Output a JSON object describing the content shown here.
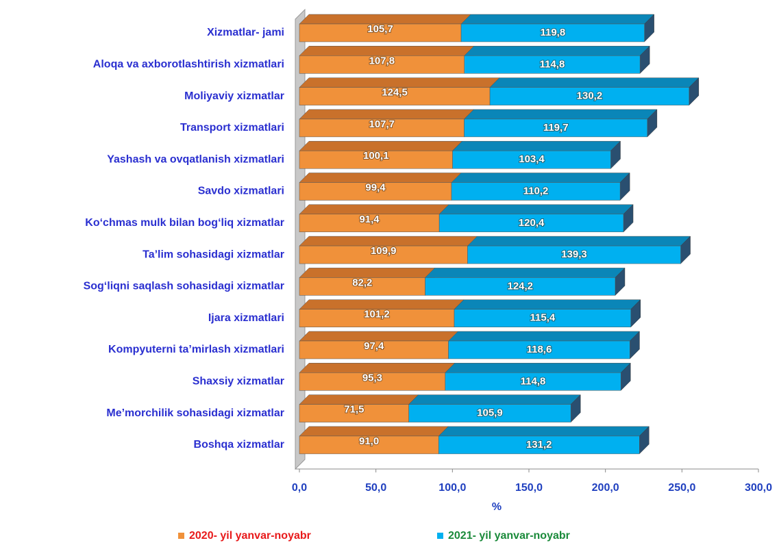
{
  "chart_data": {
    "type": "stacked_barh",
    "xlabel": "%",
    "categories": [
      "Xizmatlar- jami",
      "Aloqa va axborotlashtirish  xizmatlari",
      "Moliyaviy xizmatlar",
      "Transport xizmatlari",
      "Yashash  va ovqatlanish  xizmatlari",
      "Savdo xizmatlari",
      "Ko‘chmas mulk bilan bog‘liq xizmatlar",
      "Ta’lim sohasidagi xizmatlar",
      "Sog‘liqni saqlash sohasidagi  xizmatlar",
      "Ijara xizmatlari",
      "Kompyuterni ta’mirlash xizmatlari",
      "Shaxsiy xizmatlar",
      "Me’morchilik sohasidagi  xizmatlar",
      "Boshqa xizmatlar"
    ],
    "series": [
      {
        "name": "2020- yil yanvar-noyabr",
        "color": "#f0913a",
        "top_color": "#c9712b",
        "values": [
          105.7,
          107.8,
          124.5,
          107.7,
          100.1,
          99.4,
          91.4,
          109.9,
          82.2,
          101.2,
          97.4,
          95.3,
          71.5,
          91.0
        ],
        "value_labels": [
          "105,7",
          "107,8",
          "124,5",
          "107,7",
          "100,1",
          "99,4",
          "91,4",
          "109,9",
          "82,2",
          "101,2",
          "97,4",
          "95,3",
          "71,5",
          "91,0"
        ]
      },
      {
        "name": "2021- yil yanvar-noyabr",
        "color": "#00b0f0",
        "top_color": "#0a86b8",
        "values": [
          119.8,
          114.8,
          130.2,
          119.7,
          103.4,
          110.2,
          120.4,
          139.3,
          124.2,
          115.4,
          118.6,
          114.8,
          105.9,
          131.2
        ],
        "value_labels": [
          "119,8",
          "114,8",
          "130,2",
          "119,7",
          "103,4",
          "110,2",
          "120,4",
          "139,3",
          "124,2",
          "115,4",
          "118,6",
          "114,8",
          "105,9",
          "131,2"
        ]
      }
    ],
    "xlim": [
      0,
      300
    ],
    "xticks": [
      {
        "value": 0,
        "label": "0,0"
      },
      {
        "value": 50,
        "label": "50,0"
      },
      {
        "value": 100,
        "label": "100,0"
      },
      {
        "value": 150,
        "label": "150,0"
      },
      {
        "value": 200,
        "label": "200,0"
      },
      {
        "value": 250,
        "label": "250,0"
      },
      {
        "value": 300,
        "label": "300,0"
      }
    ]
  }
}
